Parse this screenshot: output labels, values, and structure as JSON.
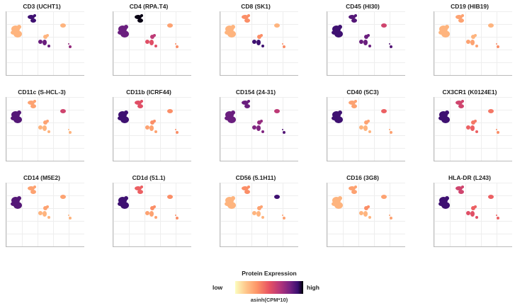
{
  "chart_data": {
    "type": "scatter",
    "panels": [
      {
        "title": "CD3 (UCHT1)",
        "levels": [
          0.2,
          0.2,
          0.85,
          0.2,
          0.75,
          0.65
        ]
      },
      {
        "title": "CD4 (RPA.T4)",
        "levels": [
          0.75,
          0.25,
          0.98,
          0.55,
          0.45,
          0.3
        ]
      },
      {
        "title": "CD8 (SK1)",
        "levels": [
          0.2,
          0.2,
          0.3,
          0.3,
          0.85,
          0.3
        ]
      },
      {
        "title": "CD45 (HI30)",
        "levels": [
          0.85,
          0.5,
          0.8,
          0.75,
          0.75,
          0.8
        ]
      },
      {
        "title": "CD19 (HIB19)",
        "levels": [
          0.2,
          0.2,
          0.25,
          0.2,
          0.25,
          0.3
        ]
      },
      {
        "title": "CD11c (S-HCL-3)",
        "levels": [
          0.8,
          0.5,
          0.25,
          0.25,
          0.2,
          0.2
        ]
      },
      {
        "title": "CD11b (ICRF44)",
        "levels": [
          0.85,
          0.3,
          0.45,
          0.3,
          0.25,
          0.3
        ]
      },
      {
        "title": "CD154 (24-31)",
        "levels": [
          0.75,
          0.55,
          0.75,
          0.65,
          0.7,
          0.8
        ]
      },
      {
        "title": "CD40 (5C3)",
        "levels": [
          0.85,
          0.4,
          0.25,
          0.25,
          0.2,
          0.25
        ]
      },
      {
        "title": "CX3CR1 (K0124E1)",
        "levels": [
          0.85,
          0.35,
          0.5,
          0.35,
          0.4,
          0.3
        ]
      },
      {
        "title": "CD14 (M5E2)",
        "levels": [
          0.8,
          0.25,
          0.25,
          0.25,
          0.2,
          0.2
        ]
      },
      {
        "title": "CD1d (51.1)",
        "levels": [
          0.85,
          0.3,
          0.4,
          0.3,
          0.25,
          0.3
        ]
      },
      {
        "title": "CD56 (5.1H11)",
        "levels": [
          0.2,
          0.85,
          0.3,
          0.25,
          0.2,
          0.25
        ]
      },
      {
        "title": "CD16 (3G8)",
        "levels": [
          0.2,
          0.25,
          0.25,
          0.3,
          0.2,
          0.25
        ]
      },
      {
        "title": "HLA-DR (L243)",
        "levels": [
          0.85,
          0.4,
          0.5,
          0.4,
          0.45,
          0.4
        ]
      }
    ],
    "legend": {
      "title": "Protein Expression",
      "low_label": "low",
      "high_label": "high",
      "scale_label": "asinh(CPM*10)",
      "colorscale": [
        "#fcfdbf",
        "#fec98d",
        "#fd9567",
        "#e85362",
        "#b5367a",
        "#7a2382",
        "#3b0f70",
        "#000004"
      ]
    }
  }
}
